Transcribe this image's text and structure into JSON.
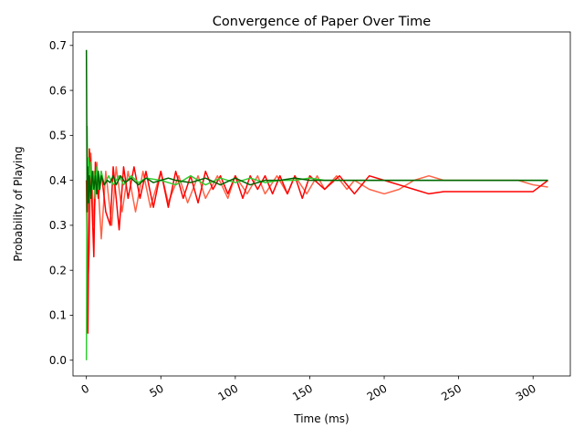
{
  "chart_data": {
    "type": "line",
    "title": "Convergence of Paper Over Time",
    "xlabel": "Time (ms)",
    "ylabel": "Probability of Playing",
    "xlim": [
      -9,
      325
    ],
    "ylim": [
      -0.035,
      0.73
    ],
    "xticks": [
      0,
      50,
      100,
      150,
      200,
      250,
      300
    ],
    "yticks": [
      0.0,
      0.1,
      0.2,
      0.3,
      0.4,
      0.5,
      0.6,
      0.7
    ],
    "xtick_rotation": 30,
    "grid": false,
    "legend": "none",
    "series": [
      {
        "color": "#ff6347",
        "x": [
          0,
          1,
          2,
          3,
          5,
          7,
          10,
          13,
          17,
          20,
          24,
          28,
          33,
          38,
          43,
          50,
          55,
          62,
          68,
          75,
          80,
          88,
          95,
          100,
          108,
          115,
          120,
          128,
          135,
          140,
          148,
          155,
          160,
          168,
          175,
          180,
          190,
          200,
          210,
          220,
          230,
          240,
          250,
          260,
          270,
          280,
          290,
          300,
          310
        ],
        "y": [
          0.4,
          0.17,
          0.25,
          0.46,
          0.3,
          0.44,
          0.27,
          0.42,
          0.3,
          0.43,
          0.33,
          0.42,
          0.33,
          0.42,
          0.34,
          0.42,
          0.35,
          0.41,
          0.35,
          0.41,
          0.36,
          0.41,
          0.36,
          0.41,
          0.37,
          0.41,
          0.37,
          0.41,
          0.37,
          0.41,
          0.37,
          0.41,
          0.38,
          0.41,
          0.38,
          0.4,
          0.38,
          0.37,
          0.38,
          0.4,
          0.41,
          0.4,
          0.4,
          0.4,
          0.4,
          0.4,
          0.4,
          0.39,
          0.385
        ]
      },
      {
        "color": "#ff0000",
        "x": [
          0,
          1,
          2,
          3,
          5,
          6,
          8,
          10,
          13,
          16,
          18,
          22,
          25,
          28,
          32,
          36,
          40,
          45,
          50,
          55,
          60,
          65,
          70,
          75,
          80,
          85,
          90,
          95,
          100,
          105,
          110,
          115,
          120,
          125,
          130,
          135,
          140,
          145,
          150,
          160,
          170,
          180,
          190,
          200,
          210,
          220,
          230,
          240,
          250,
          260,
          270,
          280,
          290,
          300,
          310
        ],
        "y": [
          0.4,
          0.06,
          0.47,
          0.42,
          0.23,
          0.44,
          0.36,
          0.42,
          0.33,
          0.3,
          0.43,
          0.29,
          0.43,
          0.36,
          0.43,
          0.36,
          0.42,
          0.34,
          0.42,
          0.34,
          0.42,
          0.36,
          0.41,
          0.35,
          0.42,
          0.38,
          0.41,
          0.37,
          0.41,
          0.36,
          0.41,
          0.38,
          0.41,
          0.37,
          0.41,
          0.37,
          0.41,
          0.36,
          0.41,
          0.38,
          0.41,
          0.37,
          0.41,
          0.4,
          0.39,
          0.38,
          0.37,
          0.375,
          0.375,
          0.375,
          0.375,
          0.375,
          0.375,
          0.375,
          0.4
        ]
      },
      {
        "color": "#32cd32",
        "x": [
          0,
          0.5,
          1,
          1.5,
          2,
          3,
          4,
          5,
          6,
          7,
          8,
          10,
          12,
          15,
          18,
          22,
          25,
          30,
          35,
          40,
          50,
          60,
          70,
          80,
          90,
          100,
          110,
          120,
          130,
          140,
          150,
          160,
          170,
          180,
          190,
          200,
          210,
          220,
          230,
          240,
          250,
          260,
          270,
          280,
          290,
          300,
          310
        ],
        "y": [
          0.0,
          0.52,
          0.35,
          0.45,
          0.37,
          0.44,
          0.38,
          0.42,
          0.36,
          0.43,
          0.38,
          0.42,
          0.39,
          0.41,
          0.39,
          0.41,
          0.39,
          0.41,
          0.395,
          0.405,
          0.4,
          0.39,
          0.41,
          0.39,
          0.405,
          0.395,
          0.405,
          0.395,
          0.4,
          0.4,
          0.405,
          0.4,
          0.4,
          0.4,
          0.4,
          0.4,
          0.4,
          0.4,
          0.4,
          0.4,
          0.4,
          0.4,
          0.4,
          0.4,
          0.4,
          0.4,
          0.4
        ]
      },
      {
        "color": "#006400",
        "x": [
          0,
          0.5,
          1,
          1.5,
          2,
          3,
          4,
          5,
          6,
          7,
          8,
          9,
          10,
          12,
          14,
          16,
          18,
          20,
          23,
          26,
          30,
          35,
          40,
          45,
          50,
          55,
          60,
          70,
          80,
          90,
          100,
          110,
          120,
          130,
          140,
          150,
          160,
          170,
          180,
          190,
          200,
          210,
          220,
          230,
          240,
          250,
          260,
          270,
          280,
          290,
          300,
          310
        ],
        "y": [
          0.69,
          0.33,
          0.43,
          0.35,
          0.41,
          0.36,
          0.42,
          0.38,
          0.41,
          0.37,
          0.42,
          0.38,
          0.41,
          0.39,
          0.4,
          0.395,
          0.41,
          0.39,
          0.41,
          0.395,
          0.405,
          0.39,
          0.405,
          0.395,
          0.4,
          0.405,
          0.4,
          0.395,
          0.405,
          0.39,
          0.405,
          0.39,
          0.4,
          0.4,
          0.405,
          0.4,
          0.4,
          0.4,
          0.4,
          0.4,
          0.4,
          0.4,
          0.4,
          0.4,
          0.4,
          0.4,
          0.4,
          0.4,
          0.4,
          0.4,
          0.4,
          0.4
        ]
      }
    ]
  }
}
